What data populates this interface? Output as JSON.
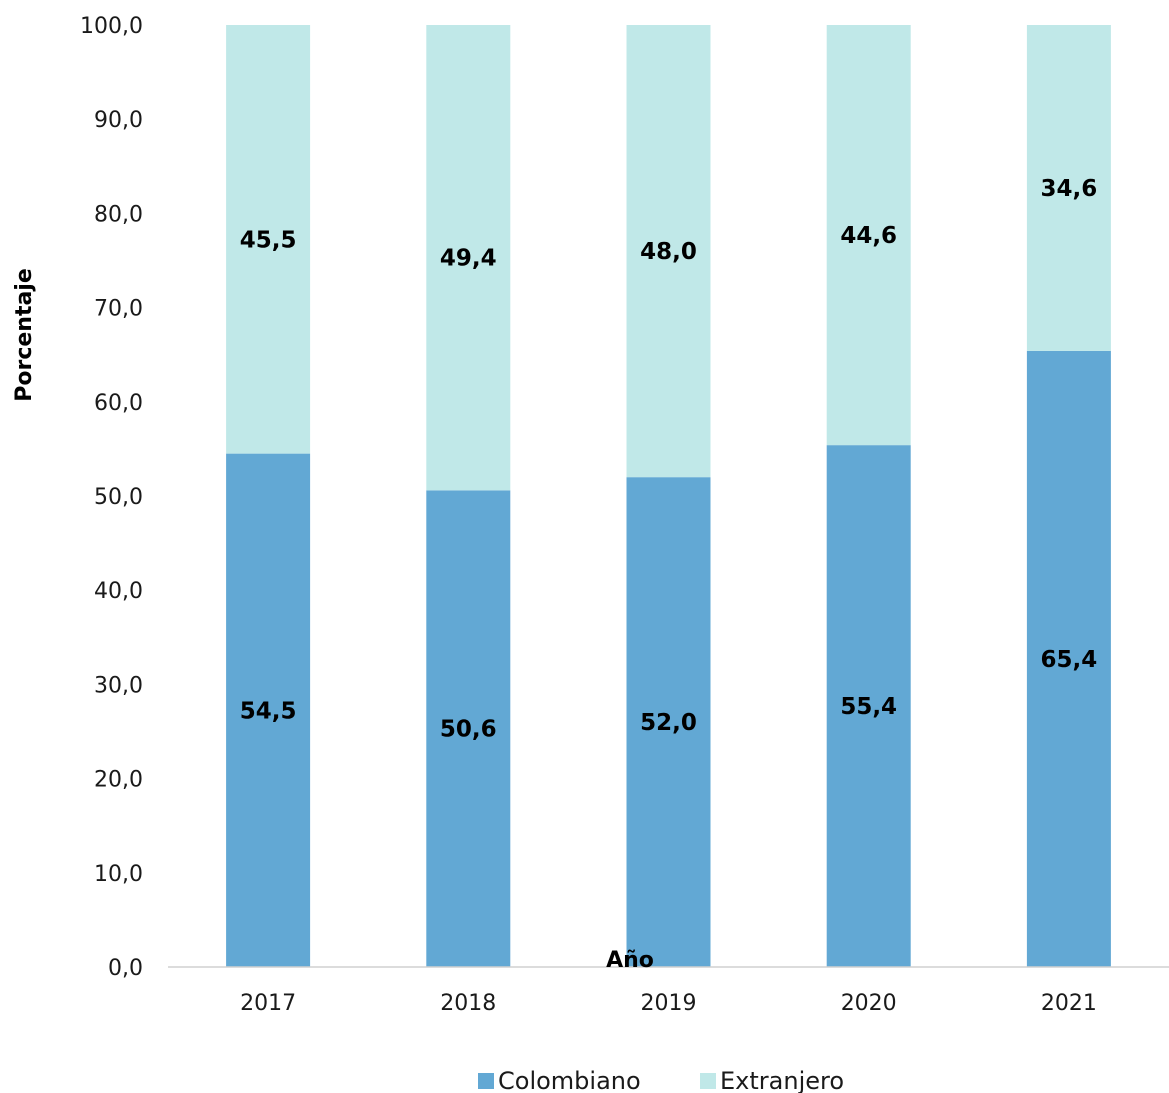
{
  "chart_data": {
    "type": "bar",
    "stacked": true,
    "categories": [
      "2017",
      "2018",
      "2019",
      "2020",
      "2021"
    ],
    "series": [
      {
        "name": "Colombiano",
        "values": [
          54.5,
          50.6,
          52.0,
          55.4,
          65.4
        ],
        "labels": [
          "54,5",
          "50,6",
          "52,0",
          "55,4",
          "65,4"
        ],
        "color": "#62a8d4"
      },
      {
        "name": "Extranjero",
        "values": [
          45.5,
          49.4,
          48.0,
          44.6,
          34.6
        ],
        "labels": [
          "45,5",
          "49,4",
          "48,0",
          "44,6",
          "34,6"
        ],
        "color": "#c0e8e8"
      }
    ],
    "xlabel": "Año",
    "ylabel": "Porcentaje",
    "ylim": [
      0,
      100
    ],
    "yticks": [
      "0,0",
      "10,0",
      "20,0",
      "30,0",
      "40,0",
      "50,0",
      "60,0",
      "70,0",
      "80,0",
      "90,0",
      "100,0"
    ],
    "grid": false,
    "legend": "bottom"
  }
}
